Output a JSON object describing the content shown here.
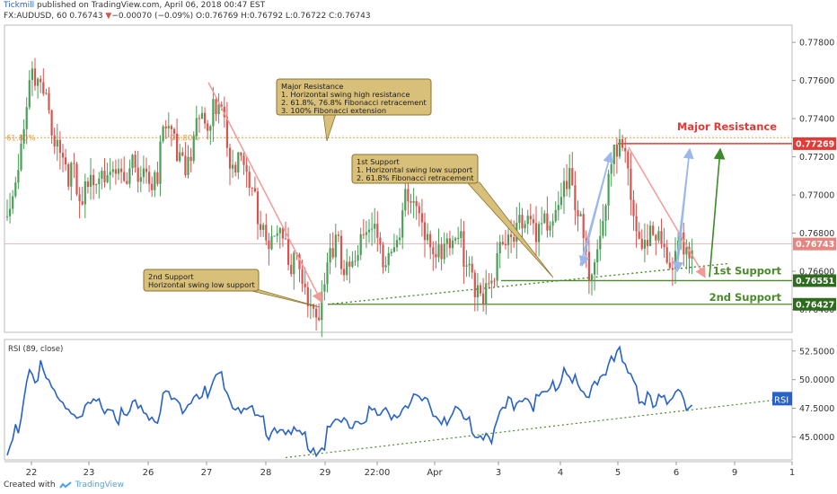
{
  "header": {
    "author": "Tickmill",
    "published": " published on TradingView.com, April 06, 2018 00:47 EST",
    "symbol": "FX:AUDUSD, 60",
    "last": "0.76743",
    "change": "−0.00070 (−0.09%)",
    "ohlc": "O:0.76769 H:0.76792 L:0.76722 C:0.76743"
  },
  "footer": {
    "created_with": "Created with",
    "brand": "TradingView"
  },
  "colors": {
    "up": "#4a9e57",
    "down": "#d9534f",
    "rsi": "#2962c6",
    "resistance": "#e53935",
    "support": "#4a8a2a",
    "callout_bg": "#d9c07a",
    "callout_border": "#8a7430",
    "fib": "#f0a040"
  },
  "chart_data": [
    {
      "type": "candlestick",
      "title": "FX:AUDUSD, 60",
      "y_ticks": [
        "0.77800",
        "0.77600",
        "0.77400",
        "0.77200",
        "0.77000",
        "0.76800",
        "0.76600",
        "0.76400"
      ],
      "ylim": [
        0.7628,
        0.7789
      ],
      "x_ticks": [
        "22",
        "23",
        "26",
        "27",
        "28",
        "29",
        "22:00",
        "Apr",
        "3",
        "4",
        "5",
        "6",
        "9",
        "1"
      ],
      "price_labels": [
        {
          "name": "Major Resistance",
          "value": 0.77269,
          "text": "0.77269"
        },
        {
          "name": "last",
          "value": 0.76743,
          "text": "0.76743"
        },
        {
          "name": "1st Support",
          "value": 0.76551,
          "text": "0.76551"
        },
        {
          "name": "2nd Support",
          "value": 0.76427,
          "text": "0.76427"
        }
      ],
      "fib_labels": [
        "61.80%",
        "76.80%"
      ],
      "fib_level": 0.773,
      "close_anchors": [
        [
          0,
          0.7692
        ],
        [
          6,
          0.7742
        ],
        [
          8,
          0.777
        ],
        [
          10,
          0.7762
        ],
        [
          12,
          0.7758
        ],
        [
          16,
          0.7742
        ],
        [
          20,
          0.7726
        ],
        [
          24,
          0.7712
        ],
        [
          26,
          0.7694
        ],
        [
          30,
          0.7712
        ],
        [
          34,
          0.7722
        ],
        [
          38,
          0.7716
        ],
        [
          42,
          0.7706
        ],
        [
          46,
          0.7722
        ],
        [
          50,
          0.7718
        ],
        [
          54,
          0.771
        ],
        [
          56,
          0.7738
        ],
        [
          60,
          0.7732
        ],
        [
          64,
          0.7724
        ],
        [
          68,
          0.774
        ],
        [
          70,
          0.7742
        ],
        [
          72,
          0.7734
        ],
        [
          74,
          0.7748
        ],
        [
          76,
          0.776
        ],
        [
          78,
          0.7746
        ],
        [
          80,
          0.7728
        ],
        [
          84,
          0.7718
        ],
        [
          88,
          0.7704
        ],
        [
          90,
          0.7698
        ],
        [
          92,
          0.769
        ],
        [
          94,
          0.768
        ],
        [
          96,
          0.769
        ],
        [
          100,
          0.7676
        ],
        [
          102,
          0.766
        ],
        [
          104,
          0.7672
        ],
        [
          106,
          0.7662
        ],
        [
          108,
          0.7656
        ],
        [
          110,
          0.7646
        ],
        [
          112,
          0.7644
        ],
        [
          114,
          0.7652
        ],
        [
          116,
          0.7668
        ],
        [
          118,
          0.7676
        ],
        [
          122,
          0.767
        ],
        [
          126,
          0.7676
        ],
        [
          130,
          0.7686
        ],
        [
          134,
          0.7676
        ],
        [
          138,
          0.768
        ],
        [
          140,
          0.7688
        ],
        [
          142,
          0.7696
        ],
        [
          144,
          0.7701
        ],
        [
          148,
          0.7692
        ],
        [
          152,
          0.7683
        ],
        [
          156,
          0.7678
        ],
        [
          160,
          0.7676
        ],
        [
          162,
          0.7681
        ],
        [
          166,
          0.767
        ],
        [
          168,
          0.766
        ],
        [
          170,
          0.7656
        ],
        [
          172,
          0.7657
        ],
        [
          174,
          0.7652
        ],
        [
          176,
          0.7666
        ],
        [
          178,
          0.7676
        ],
        [
          180,
          0.7692
        ],
        [
          182,
          0.7688
        ],
        [
          184,
          0.7698
        ],
        [
          188,
          0.7686
        ],
        [
          190,
          0.768
        ],
        [
          192,
          0.7684
        ],
        [
          194,
          0.7688
        ],
        [
          196,
          0.7694
        ],
        [
          198,
          0.7704
        ],
        [
          200,
          0.7716
        ],
        [
          202,
          0.771
        ],
        [
          204,
          0.7696
        ],
        [
          206,
          0.7686
        ],
        [
          208,
          0.7666
        ],
        [
          210,
          0.7672
        ],
        [
          212,
          0.7686
        ],
        [
          214,
          0.7696
        ],
        [
          216,
          0.7712
        ],
        [
          218,
          0.7722
        ],
        [
          220,
          0.7726
        ],
        [
          222,
          0.7718
        ],
        [
          224,
          0.7704
        ],
        [
          226,
          0.7692
        ],
        [
          228,
          0.7682
        ],
        [
          230,
          0.7686
        ],
        [
          232,
          0.768
        ],
        [
          234,
          0.7678
        ],
        [
          236,
          0.767
        ],
        [
          238,
          0.7664
        ],
        [
          240,
          0.7676
        ],
        [
          242,
          0.7688
        ],
        [
          244,
          0.7678
        ],
        [
          246,
          0.7674
        ]
      ],
      "annotations": [
        {
          "name": "major-resistance-callout",
          "lines": [
            "Major Resistance",
            "1. Horizontal swing high resistance",
            "2. 61.8%, 76.8% Fibonacci retracement",
            "3. 100% Fibonacci extension"
          ]
        },
        {
          "name": "first-support-callout",
          "lines": [
            "1st Support",
            "1. Horizontal swing low support",
            "2. 61.8% Fibonacci retracement"
          ]
        },
        {
          "name": "second-support-callout",
          "lines": [
            "2nd Support",
            "Horizontal swing low support"
          ]
        }
      ],
      "level_labels": {
        "major_resistance": "Major Resistance",
        "first_support": "1st Support",
        "second_support": "2nd Support"
      }
    },
    {
      "type": "line",
      "title": "RSI (89, close)",
      "ylim": [
        43.0,
        53.5
      ],
      "y_ticks": [
        "52.5000",
        "50.0000",
        "47.5000",
        "45.0000"
      ],
      "badge": "RSI",
      "series": [
        {
          "name": "RSI",
          "anchors": [
            [
              0,
              43.8
            ],
            [
              4,
              46.5
            ],
            [
              8,
              51.6
            ],
            [
              10,
              50.3
            ],
            [
              12,
              51.3
            ],
            [
              16,
              49.3
            ],
            [
              20,
              48.5
            ],
            [
              24,
              47.6
            ],
            [
              26,
              46.9
            ],
            [
              30,
              47.8
            ],
            [
              34,
              48.3
            ],
            [
              38,
              47.8
            ],
            [
              42,
              47.0
            ],
            [
              46,
              48.0
            ],
            [
              50,
              47.6
            ],
            [
              54,
              47.2
            ],
            [
              56,
              49.0
            ],
            [
              60,
              48.6
            ],
            [
              64,
              48.1
            ],
            [
              68,
              49.2
            ],
            [
              70,
              49.3
            ],
            [
              72,
              48.9
            ],
            [
              74,
              50.0
            ],
            [
              76,
              50.8
            ],
            [
              78,
              49.8
            ],
            [
              80,
              48.8
            ],
            [
              84,
              48.2
            ],
            [
              88,
              47.4
            ],
            [
              90,
              47.0
            ],
            [
              92,
              46.6
            ],
            [
              94,
              46.0
            ],
            [
              96,
              46.7
            ],
            [
              100,
              46.0
            ],
            [
              102,
              45.2
            ],
            [
              104,
              45.8
            ],
            [
              106,
              45.4
            ],
            [
              108,
              45.1
            ],
            [
              110,
              44.7
            ],
            [
              112,
              44.5
            ],
            [
              114,
              45.1
            ],
            [
              116,
              46.2
            ],
            [
              118,
              46.7
            ],
            [
              122,
              46.6
            ],
            [
              126,
              47.0
            ],
            [
              130,
              47.6
            ],
            [
              134,
              47.2
            ],
            [
              138,
              47.4
            ],
            [
              140,
              47.8
            ],
            [
              142,
              48.4
            ],
            [
              144,
              48.6
            ],
            [
              148,
              48.2
            ],
            [
              152,
              47.8
            ],
            [
              156,
              47.4
            ],
            [
              160,
              47.1
            ],
            [
              162,
              47.4
            ],
            [
              166,
              46.7
            ],
            [
              168,
              46.0
            ],
            [
              170,
              45.7
            ],
            [
              172,
              45.9
            ],
            [
              174,
              45.5
            ],
            [
              176,
              46.6
            ],
            [
              178,
              47.3
            ],
            [
              180,
              48.6
            ],
            [
              182,
              48.3
            ],
            [
              184,
              49.2
            ],
            [
              188,
              48.7
            ],
            [
              190,
              48.4
            ],
            [
              192,
              48.9
            ],
            [
              194,
              49.4
            ],
            [
              196,
              49.8
            ],
            [
              198,
              50.4
            ],
            [
              200,
              51.6
            ],
            [
              202,
              51.0
            ],
            [
              204,
              50.0
            ],
            [
              206,
              49.4
            ],
            [
              208,
              48.4
            ],
            [
              210,
              49.0
            ],
            [
              212,
              50.3
            ],
            [
              214,
              51.2
            ],
            [
              216,
              52.2
            ],
            [
              218,
              52.8
            ],
            [
              220,
              52.4
            ],
            [
              222,
              51.3
            ],
            [
              224,
              50.3
            ],
            [
              226,
              49.6
            ],
            [
              228,
              48.9
            ],
            [
              230,
              49.4
            ],
            [
              232,
              48.8
            ],
            [
              234,
              48.9
            ],
            [
              236,
              48.2
            ],
            [
              238,
              47.9
            ],
            [
              240,
              49.0
            ],
            [
              242,
              49.6
            ],
            [
              244,
              48.6
            ],
            [
              246,
              48.3
            ]
          ]
        }
      ]
    }
  ]
}
